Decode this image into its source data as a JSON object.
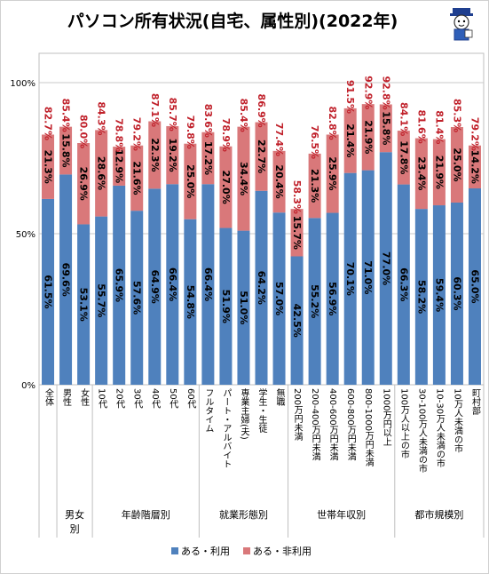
{
  "chart_data": {
    "type": "bar",
    "stacked": true,
    "title": "パソコン所有状況(自宅、属性別)(2022年)",
    "yticks": [
      "0%",
      "50%",
      "100%"
    ],
    "ylim": [
      0,
      110
    ],
    "grid": true,
    "legend_position": "bottom",
    "categories": [
      "全体",
      "男性",
      "女性",
      "10代",
      "20代",
      "30代",
      "40代",
      "50代",
      "60代",
      "フルタイム",
      "パート・アルバイト",
      "専業主婦(夫)",
      "学生・生徒",
      "無職",
      "200万円未満",
      "200-400万円未満",
      "400-600万円未満",
      "600-800万円未満",
      "800-1000万円未満",
      "1000万円以上",
      "100万人以上の市",
      "30-100万人未満の市",
      "10-30万人未満の市",
      "10万人未満の市",
      "町村部"
    ],
    "groups": [
      {
        "label": "男女\n別",
        "start": 1,
        "end": 2
      },
      {
        "label": "年齢階層別",
        "start": 3,
        "end": 8
      },
      {
        "label": "就業形態別",
        "start": 9,
        "end": 13
      },
      {
        "label": "世帯年収別",
        "start": 14,
        "end": 19
      },
      {
        "label": "都市規模別",
        "start": 20,
        "end": 24
      }
    ],
    "series": [
      {
        "name": "ある・利用",
        "color": "#4F81BD",
        "values": [
          61.5,
          69.6,
          53.1,
          55.7,
          65.9,
          57.6,
          64.9,
          66.4,
          54.8,
          66.4,
          51.9,
          51.0,
          64.2,
          57.0,
          42.5,
          55.2,
          56.9,
          70.1,
          71.0,
          77.0,
          66.3,
          58.2,
          59.4,
          60.3,
          65.0
        ],
        "labels": [
          "61.5%",
          "69.6%",
          "53.1%",
          "55.7%",
          "65.9%",
          "57.6%",
          "64.9%",
          "66.4%",
          "54.8%",
          "66.4%",
          "51.9%",
          "51.0%",
          "64.2%",
          "57.0%",
          "42.5%",
          "55.2%",
          "56.9%",
          "70.1%",
          "71.0%",
          "77.0%",
          "66.3%",
          "58.2%",
          "59.4%",
          "60.3%",
          "65.0%"
        ]
      },
      {
        "name": "ある・非利用",
        "color": "#D9787A",
        "values": [
          21.3,
          15.8,
          26.9,
          28.6,
          12.9,
          21.6,
          22.3,
          19.2,
          25.0,
          17.2,
          27.0,
          34.4,
          22.7,
          20.4,
          15.7,
          21.3,
          25.9,
          21.4,
          21.9,
          15.8,
          17.8,
          23.4,
          21.9,
          25.0,
          14.2
        ],
        "labels": [
          "21.3%",
          "15.8%",
          "26.9%",
          "28.6%",
          "12.9%",
          "21.6%",
          "22.3%",
          "19.2%",
          "25.0%",
          "17.2%",
          "27.0%",
          "34.4%",
          "22.7%",
          "20.4%",
          "15.7%",
          "21.3%",
          "25.9%",
          "21.4%",
          "21.9%",
          "15.8%",
          "17.8%",
          "23.4%",
          "21.9%",
          "25.0%",
          "14.2%"
        ]
      }
    ],
    "totals": [
      82.7,
      85.4,
      80.0,
      84.3,
      78.8,
      79.2,
      87.1,
      85.7,
      79.8,
      83.6,
      78.9,
      85.4,
      86.9,
      77.4,
      58.3,
      76.5,
      82.8,
      91.5,
      92.9,
      92.8,
      84.1,
      81.6,
      81.4,
      85.3,
      79.2
    ],
    "total_labels": [
      "82.7%",
      "85.4%",
      "80.0%",
      "84.3%",
      "78.8%",
      "79.2%",
      "87.1%",
      "85.7%",
      "79.8%",
      "83.6%",
      "78.9%",
      "85.4%",
      "86.9%",
      "77.4%",
      "58.3%",
      "76.5%",
      "82.8%",
      "91.5%",
      "92.9%",
      "92.8%",
      "84.1%",
      "81.6%",
      "81.4%",
      "85.3%",
      "79.2%"
    ],
    "total_label_color": "#C0202A"
  }
}
